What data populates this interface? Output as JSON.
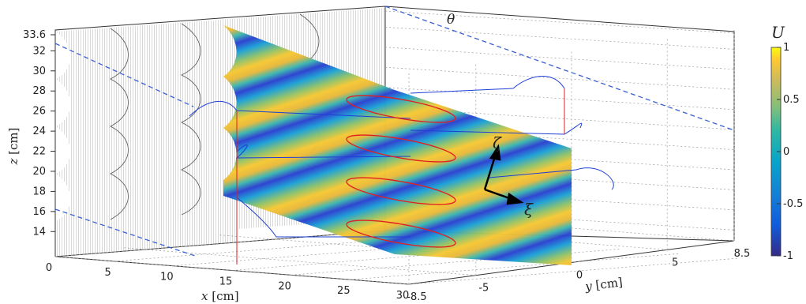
{
  "chart_data": {
    "type": "surface-3d",
    "axes": {
      "x": {
        "label_var": "x",
        "label_unit": "[cm]",
        "ticks": [
          0,
          5,
          10,
          15,
          20,
          25,
          30
        ],
        "range": [
          0,
          30
        ]
      },
      "y": {
        "label_var": "y",
        "label_unit": "[cm]",
        "ticks": [
          -8.5,
          -5,
          0,
          5,
          8.5
        ],
        "tick_labels": [
          "-8.5",
          "-5",
          "0",
          "5",
          "8.5"
        ],
        "range": [
          -8.5,
          8.5
        ]
      },
      "z": {
        "label_var": "z",
        "label_unit": "[cm]",
        "ticks": [
          14,
          16,
          18,
          20,
          22,
          24,
          26,
          28,
          30,
          32,
          33.6
        ],
        "tick_labels": [
          "14",
          "16",
          "18",
          "20",
          "22",
          "24",
          "26",
          "28",
          "30",
          "32",
          "33.6"
        ],
        "range": [
          13,
          33.6
        ]
      }
    },
    "colorbar": {
      "label": "U",
      "range": [
        -1,
        1
      ],
      "ticks": [
        -1,
        -0.5,
        0,
        0.5,
        1
      ],
      "tick_labels": [
        "-1",
        "-0.5",
        "0",
        "0.5",
        "1"
      ],
      "colormap": "parula"
    },
    "annotations": [
      {
        "symbol": "θ",
        "meaning": "inclination angle marker"
      },
      {
        "symbol": "ζ",
        "meaning": "local vertical coordinate"
      },
      {
        "symbol": "ξ",
        "meaning": "local horizontal coordinate"
      }
    ],
    "wavy_wall_crests_z": [
      32,
      26,
      20
    ],
    "wavy_wall_troughs_z": [
      29,
      23,
      17
    ],
    "grid": true,
    "colors": {
      "profile_lines": "#1f3fd6",
      "red_profiles": "#e02020",
      "dashed_lines": "#3a5fd6",
      "wall_hatch": "#777777"
    }
  }
}
